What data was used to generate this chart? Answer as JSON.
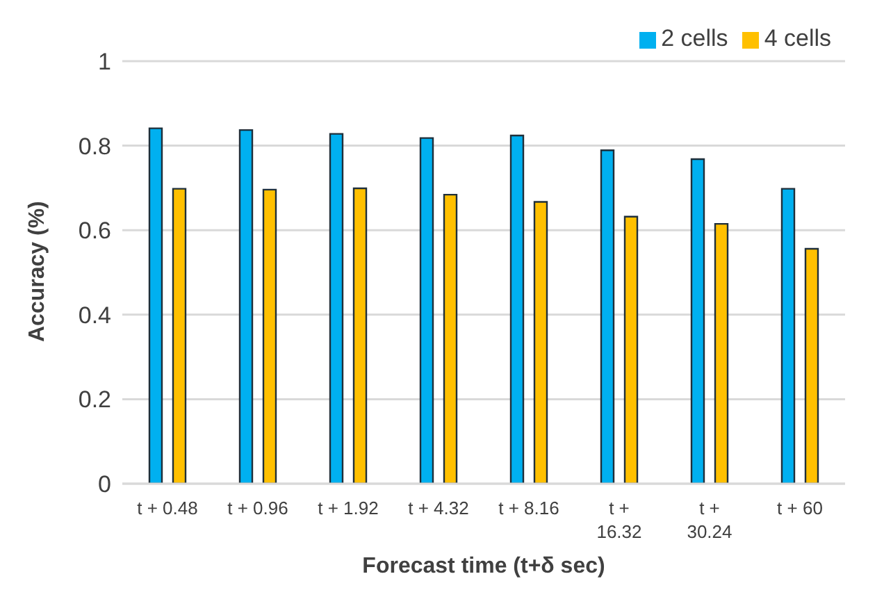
{
  "chart_data": {
    "type": "bar",
    "xlabel": "Forecast time (t+δ sec)",
    "ylabel": "Accuracy (%)",
    "categories": [
      "t + 0.48",
      "t + 0.96",
      "t + 1.92",
      "t + 4.32",
      "t + 8.16",
      "t + 16.32",
      "t + 30.24",
      "t + 60"
    ],
    "series": [
      {
        "name": "2 cells",
        "color": "#00b0f0",
        "values": [
          0.841,
          0.837,
          0.828,
          0.818,
          0.824,
          0.789,
          0.768,
          0.698
        ]
      },
      {
        "name": "4 cells",
        "color": "#ffc000",
        "values": [
          0.698,
          0.696,
          0.699,
          0.684,
          0.667,
          0.632,
          0.615,
          0.556
        ]
      }
    ],
    "ylim": [
      0,
      1
    ],
    "yticks": [
      0,
      0.2,
      0.4,
      0.6,
      0.8,
      1
    ],
    "grid": "y",
    "legend": "top right"
  }
}
